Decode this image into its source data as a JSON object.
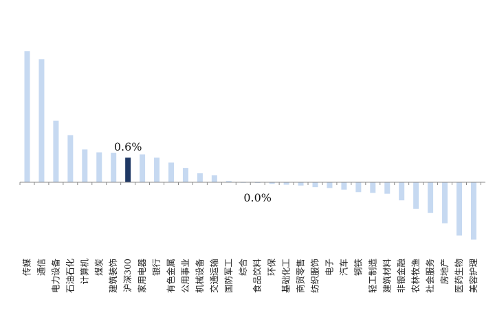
{
  "chart_data": {
    "type": "bar",
    "title": "",
    "xlabel": "",
    "ylabel": "",
    "categories": [
      "传媒",
      "通信",
      "电力设备",
      "石油石化",
      "计算机",
      "煤炭",
      "建筑装饰",
      "沪深300",
      "家用电器",
      "银行",
      "有色金属",
      "公用事业",
      "机械设备",
      "交通运输",
      "国防军工",
      "综合",
      "食品饮料",
      "环保",
      "基础化工",
      "商贸零售",
      "纺织服饰",
      "电子",
      "汽车",
      "钢铁",
      "轻工制造",
      "建筑材料",
      "非银金融",
      "农林牧渔",
      "社会服务",
      "房地产",
      "医药生物",
      "美容护理"
    ],
    "values": [
      3.2,
      3.0,
      1.5,
      1.15,
      0.8,
      0.73,
      0.72,
      0.6,
      0.68,
      0.6,
      0.48,
      0.35,
      0.22,
      0.17,
      0.03,
      -0.01,
      0.0,
      -0.04,
      -0.06,
      -0.08,
      -0.12,
      -0.14,
      -0.18,
      -0.24,
      -0.26,
      -0.28,
      -0.44,
      -0.65,
      -0.75,
      -1.0,
      -1.3,
      -1.4
    ],
    "highlight_index": 7,
    "data_labels": [
      {
        "category": "沪深300",
        "text": "0.6%"
      },
      {
        "category": "食品饮料",
        "text": "0.0%"
      }
    ],
    "ylim": [
      -1.7,
      3.4
    ],
    "colors": {
      "bar": "#c6d9f1",
      "highlight": "#1f3864",
      "axis": "#888888"
    },
    "grid": false,
    "legend": "none"
  }
}
